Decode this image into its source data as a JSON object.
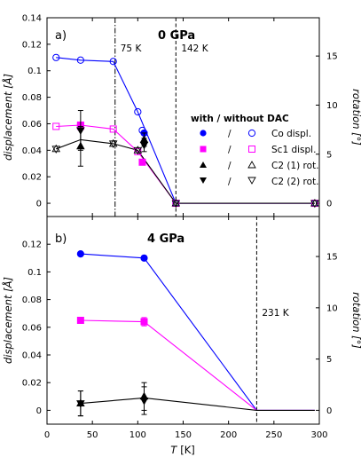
{
  "chart_data": [
    {
      "type": "line",
      "panel_label": "a)",
      "title": "0 GPa",
      "xlim": [
        0,
        300
      ],
      "ylim": [
        -0.01,
        0.14
      ],
      "ylabel": "displacement [Å]",
      "y2label": "rotation [°]",
      "y2lim": [
        -1.35,
        18.9
      ],
      "yticks": [
        "0",
        "0.02",
        "0.04",
        "0.06",
        "0.08",
        "0.1",
        "0.12",
        "0.14"
      ],
      "y2ticks": [
        "0",
        "5",
        "10",
        "15"
      ],
      "legend": {
        "title": "with / without DAC",
        "separator": "/",
        "entries": [
          "Co displ.",
          "Sc1 displ.",
          "C2 (1) rot.",
          "C2 (2) rot."
        ]
      },
      "annotations": [
        {
          "x": 75,
          "label": "75 K",
          "style": "dash-dot"
        },
        {
          "x": 142,
          "label": "142 K",
          "style": "dashed"
        }
      ],
      "series": [
        {
          "color": "#0000ff",
          "with_dac": [
            [
              107,
              0.053
            ]
          ],
          "without_dac": [
            [
              10,
              0.11
            ],
            [
              37,
              0.108
            ],
            [
              73,
              0.107
            ],
            [
              100,
              0.069
            ],
            [
              105,
              0.055
            ],
            [
              142,
              0.0
            ],
            [
              295,
              0.0
            ]
          ],
          "line": [
            [
              10,
              0.11
            ],
            [
              37,
              0.108
            ],
            [
              73,
              0.107
            ],
            [
              100,
              0.069
            ],
            [
              142,
              0.0
            ],
            [
              295,
              0.0
            ]
          ]
        },
        {
          "color": "#ff00ff",
          "with_dac": [
            [
              37,
              0.059
            ],
            [
              105,
              0.031
            ]
          ],
          "without_dac": [
            [
              10,
              0.058
            ],
            [
              37,
              0.058
            ],
            [
              73,
              0.056
            ],
            [
              100,
              0.039
            ],
            [
              142,
              0.0
            ],
            [
              295,
              0.0
            ]
          ],
          "line": [
            [
              10,
              0.058
            ],
            [
              37,
              0.059
            ],
            [
              73,
              0.056
            ],
            [
              100,
              0.039
            ],
            [
              142,
              0.0
            ],
            [
              295,
              0.0
            ]
          ]
        },
        {
          "color": "#000000",
          "with_dac": [
            [
              37,
              0.043,
              0.015
            ],
            [
              107,
              0.048,
              0.005
            ]
          ],
          "without_dac": [
            [
              10,
              0.041
            ],
            [
              73,
              0.045
            ],
            [
              100,
              0.04
            ],
            [
              142,
              0.0
            ],
            [
              295,
              0.0
            ]
          ],
          "line": [
            [
              10,
              0.041
            ],
            [
              37,
              0.048
            ],
            [
              73,
              0.045
            ],
            [
              100,
              0.04
            ],
            [
              142,
              0.0
            ],
            [
              295,
              0.0
            ]
          ]
        },
        {
          "color": "#000000",
          "with_dac": [
            [
              37,
              0.055,
              0.015
            ],
            [
              107,
              0.044,
              0.005
            ]
          ],
          "without_dac": [
            [
              10,
              0.041
            ],
            [
              73,
              0.045
            ],
            [
              100,
              0.04
            ],
            [
              142,
              0.0
            ],
            [
              295,
              0.0
            ]
          ]
        }
      ]
    },
    {
      "type": "line",
      "panel_label": "b)",
      "title": "4 GPa",
      "xlim": [
        0,
        300
      ],
      "ylim": [
        -0.01,
        0.14
      ],
      "xlabel_var": "T",
      "xlabel_unit": "[K]",
      "ylabel": "displacement [Å]",
      "y2label": "rotation [°]",
      "y2lim": [
        -1.35,
        18.9
      ],
      "xticks": [
        "0",
        "50",
        "100",
        "150",
        "200",
        "250",
        "300"
      ],
      "yticks": [
        "0",
        "0.02",
        "0.04",
        "0.06",
        "0.08",
        "0.1",
        "0.12"
      ],
      "y2ticks": [
        "0",
        "5",
        "10",
        "15"
      ],
      "annotations": [
        {
          "x": 231,
          "label": "231 K",
          "style": "dashed"
        }
      ],
      "series": [
        {
          "color": "#0000ff",
          "with_dac": [
            [
              37,
              0.113
            ],
            [
              107,
              0.11
            ]
          ],
          "line": [
            [
              37,
              0.113
            ],
            [
              107,
              0.11
            ],
            [
              231,
              0.0
            ],
            [
              295,
              0.0
            ]
          ]
        },
        {
          "color": "#ff00ff",
          "with_dac": [
            [
              37,
              0.065,
              0.002
            ],
            [
              107,
              0.064,
              0.003
            ]
          ],
          "line": [
            [
              37,
              0.065
            ],
            [
              107,
              0.064
            ],
            [
              231,
              0.0
            ],
            [
              295,
              0.0
            ]
          ]
        },
        {
          "color": "#000000",
          "with_dac": [
            [
              37,
              0.005,
              0.009
            ],
            [
              107,
              0.01,
              0.01
            ]
          ],
          "line": [
            [
              37,
              0.005
            ],
            [
              107,
              0.009
            ],
            [
              231,
              0.0
            ],
            [
              295,
              0.0
            ]
          ]
        },
        {
          "color": "#000000",
          "with_dac": [
            [
              37,
              0.005,
              0.009
            ],
            [
              107,
              0.007,
              0.01
            ]
          ]
        }
      ]
    }
  ]
}
